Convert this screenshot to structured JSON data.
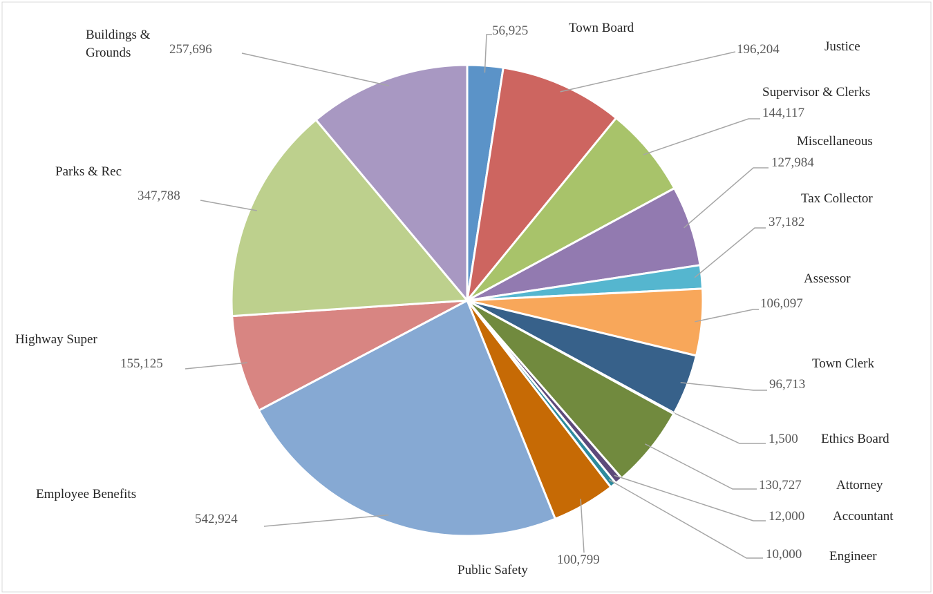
{
  "chart_data": {
    "type": "pie",
    "categories": [
      "Town Board",
      "Justice",
      "Supervisor & Clerks",
      "Miscellaneous",
      "Tax Collector",
      "Assessor",
      "Town Clerk",
      "Ethics Board",
      "Attorney",
      "Accountant",
      "Engineer",
      "Public Safety",
      "Employee Benefits",
      "Highway Super",
      "Parks & Rec",
      "Buildings & Grounds"
    ],
    "values": [
      56925,
      196204,
      144117,
      127984,
      37182,
      106097,
      96713,
      1500,
      130727,
      12000,
      10000,
      100799,
      542924,
      155125,
      347788,
      257696
    ],
    "value_labels": [
      "56,925",
      "196,204",
      "144,117",
      "127,984",
      "37,182",
      "106,097",
      "96,713",
      "1,500",
      "130,727",
      "12,000",
      "10,000",
      "100,799",
      "542,924",
      "155,125",
      "347,788",
      "257,696"
    ],
    "colors": [
      "#5b93c8",
      "#cd6560",
      "#a8c36a",
      "#927ab0",
      "#55b6cf",
      "#f8a75a",
      "#37618a",
      "#8a3e3c",
      "#718a3e",
      "#5d4a7a",
      "#2d8a9c",
      "#c66a05",
      "#86a9d3",
      "#d88582",
      "#bdd08d",
      "#a898c2"
    ]
  }
}
